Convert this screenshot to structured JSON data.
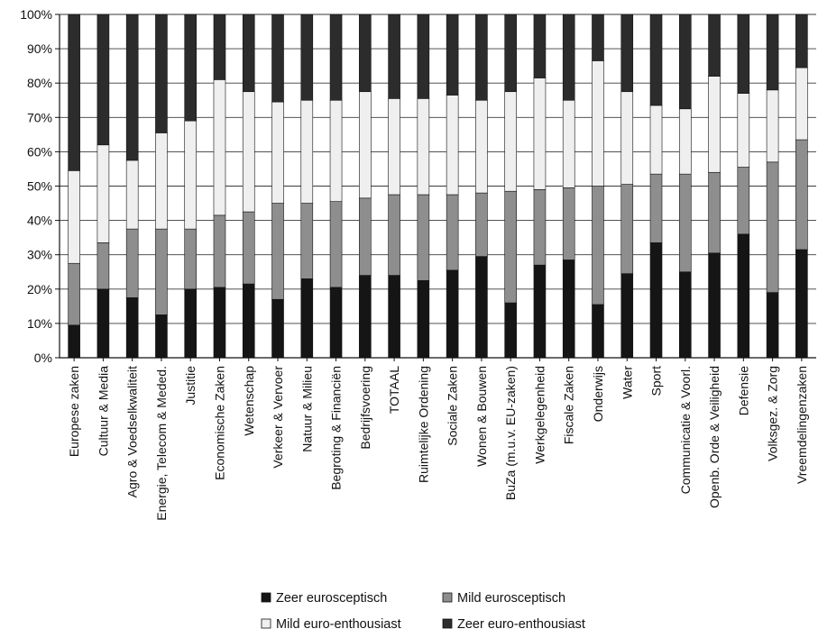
{
  "chart_data": {
    "type": "bar",
    "stacked": true,
    "title": "",
    "xlabel": "",
    "ylabel": "",
    "ylim": [
      0,
      100
    ],
    "y_ticks": [
      "0%",
      "10%",
      "20%",
      "30%",
      "40%",
      "50%",
      "60%",
      "70%",
      "80%",
      "90%",
      "100%"
    ],
    "grid": "horizontal",
    "legend_position": "bottom",
    "categories": [
      "Europese zaken",
      "Cultuur & Media",
      "Agro & Voedselkwaliteit",
      "Energie, Telecom & Meded.",
      "Justitie",
      "Economische Zaken",
      "Wetenschap",
      "Verkeer & Vervoer",
      "Natuur & Milieu",
      "Begroting & Financiën",
      "Bedrijfsvoering",
      "TOTAAL",
      "Ruimtelijke Ordening",
      "Sociale Zaken",
      "Wonen & Bouwen",
      "BuZa (m.u.v. EU-zaken)",
      "Werkgelegenheid",
      "Fiscale Zaken",
      "Onderwijs",
      "Water",
      "Sport",
      "Communicatie & Voorl.",
      "Openb. Orde & Veiligheid",
      "Defensie",
      "Volksgez. & Zorg",
      "Vreemdelingenzaken"
    ],
    "series": [
      {
        "name": "Zeer eurosceptisch",
        "color": "#151515",
        "values": [
          9.5,
          20,
          17.5,
          12.5,
          20,
          20.5,
          21.5,
          17,
          23,
          20.5,
          24,
          24,
          22.5,
          25.5,
          29.5,
          16,
          27,
          28.5,
          15.5,
          24.5,
          33.5,
          25,
          30.5,
          36,
          19,
          31.5
        ]
      },
      {
        "name": "Mild eurosceptisch",
        "color": "#8e8e8e",
        "values": [
          18,
          13.5,
          20,
          25,
          17.5,
          21,
          21,
          28,
          22,
          25,
          22.5,
          23.5,
          25,
          22,
          18.5,
          32.5,
          22,
          21,
          34.5,
          26,
          20,
          28.5,
          23.5,
          19.5,
          38,
          32
        ]
      },
      {
        "name": "Mild euro-enthousiast",
        "color": "#efefef",
        "values": [
          27,
          28.5,
          20,
          28,
          31.5,
          39.5,
          35,
          29.5,
          30,
          29.5,
          31,
          28,
          28,
          29,
          27,
          29,
          32.5,
          25.5,
          36.5,
          27,
          20,
          19,
          28,
          21.5,
          21,
          21
        ]
      },
      {
        "name": "Zeer euro-enthousiast",
        "color": "#2c2c2c",
        "values": [
          45.5,
          38,
          42.5,
          34.5,
          31,
          19,
          22.5,
          25.5,
          25,
          25,
          22.5,
          24.5,
          24.5,
          23.5,
          25,
          22.5,
          18.5,
          25,
          13.5,
          22.5,
          26.5,
          27.5,
          18,
          23,
          22,
          15.5
        ]
      }
    ]
  }
}
